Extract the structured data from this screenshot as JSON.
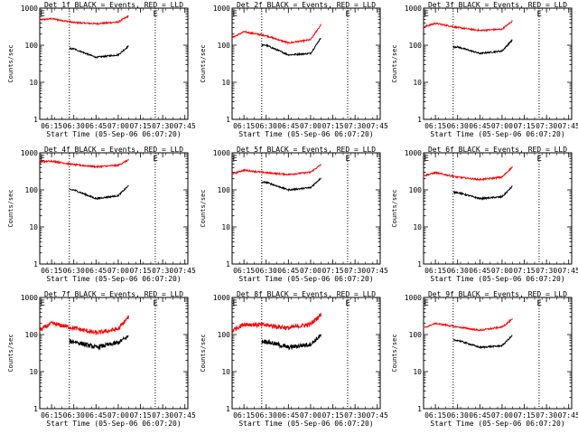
{
  "figure": {
    "x_time_labels": [
      "06:15",
      "06:30",
      "06:45",
      "07:00",
      "07:15",
      "07:30",
      "07:45"
    ],
    "y_tick_labels": [
      "1",
      "10",
      "100",
      "1000"
    ],
    "ylabel": "Counts/sec",
    "xlabel": "Start Time (05-Sep-06 06:07:20)",
    "marker_label": "E",
    "colors": {
      "events": "#000000",
      "lld": "#ff0000",
      "axes": "#000000"
    }
  },
  "chart_data": [
    {
      "type": "line",
      "title": "Det 1f BLACK = Events, RED = LLD",
      "xlabel": "Start Time (05-Sep-06 06:07:20)",
      "ylabel": "Counts/sec",
      "x_range": [
        "06:07",
        "07:47"
      ],
      "y_range": [
        1,
        1000
      ],
      "y_scale": "log",
      "grid": false,
      "vlines": [
        "06:27",
        "07:25"
      ],
      "marker": "E",
      "x": [
        "06:07",
        "06:15",
        "06:30",
        "06:45",
        "07:00",
        "07:07"
      ],
      "series": [
        {
          "name": "LLD",
          "color": "#ff0000",
          "values": [
            480,
            520,
            410,
            380,
            420,
            620
          ]
        },
        {
          "name": "Events",
          "color": "#000000",
          "x_start": "06:27",
          "values": [
            null,
            null,
            80,
            47,
            55,
            95
          ]
        }
      ]
    },
    {
      "type": "line",
      "title": "Det 2f BLACK = Events, RED = LLD",
      "xlabel": "Start Time (05-Sep-06 06:07:20)",
      "ylabel": "Counts/sec",
      "x_range": [
        "06:07",
        "07:47"
      ],
      "y_range": [
        1,
        1000
      ],
      "y_scale": "log",
      "grid": false,
      "vlines": [
        "06:27",
        "07:25"
      ],
      "marker": "E",
      "x": [
        "06:07",
        "06:15",
        "06:30",
        "06:45",
        "07:00",
        "07:07"
      ],
      "series": [
        {
          "name": "LLD",
          "color": "#ff0000",
          "values": [
            160,
            230,
            180,
            115,
            140,
            360
          ]
        },
        {
          "name": "Events",
          "color": "#000000",
          "x_start": "06:27",
          "values": [
            null,
            null,
            100,
            55,
            60,
            160
          ]
        }
      ]
    },
    {
      "type": "line",
      "title": "Det 3f BLACK = Events, RED = LLD",
      "xlabel": "Start Time (05-Sep-06 06:07:20)",
      "ylabel": "Counts/sec",
      "x_range": [
        "06:07",
        "07:47"
      ],
      "y_range": [
        1,
        1000
      ],
      "y_scale": "log",
      "grid": false,
      "vlines": [
        "06:27",
        "07:25"
      ],
      "marker": "E",
      "x": [
        "06:07",
        "06:15",
        "06:30",
        "06:45",
        "07:00",
        "07:07"
      ],
      "series": [
        {
          "name": "LLD",
          "color": "#ff0000",
          "values": [
            310,
            390,
            300,
            250,
            270,
            450
          ]
        },
        {
          "name": "Events",
          "color": "#000000",
          "x_start": "06:27",
          "values": [
            null,
            null,
            90,
            60,
            70,
            140
          ]
        }
      ]
    },
    {
      "type": "line",
      "title": "Det 4f BLACK = Events, RED = LLD",
      "xlabel": "Start Time (05-Sep-06 06:07:20)",
      "ylabel": "Counts/sec",
      "x_range": [
        "06:07",
        "07:47"
      ],
      "y_range": [
        1,
        1000
      ],
      "y_scale": "log",
      "grid": false,
      "vlines": [
        "06:27",
        "07:25"
      ],
      "marker": "E",
      "x": [
        "06:07",
        "06:15",
        "06:30",
        "06:45",
        "07:00",
        "07:07"
      ],
      "series": [
        {
          "name": "LLD",
          "color": "#ff0000",
          "values": [
            560,
            600,
            480,
            420,
            460,
            650
          ]
        },
        {
          "name": "Events",
          "color": "#000000",
          "x_start": "06:27",
          "values": [
            null,
            null,
            100,
            58,
            70,
            130
          ]
        }
      ]
    },
    {
      "type": "line",
      "title": "Det 5f BLACK = Events, RED = LLD",
      "xlabel": "Start Time (05-Sep-06 06:07:20)",
      "ylabel": "Counts/sec",
      "x_range": [
        "06:07",
        "07:47"
      ],
      "y_range": [
        1,
        1000
      ],
      "y_scale": "log",
      "grid": false,
      "vlines": [
        "06:27",
        "07:25"
      ],
      "marker": "E",
      "x": [
        "06:07",
        "06:15",
        "06:30",
        "06:45",
        "07:00",
        "07:07"
      ],
      "series": [
        {
          "name": "LLD",
          "color": "#ff0000",
          "values": [
            270,
            340,
            290,
            260,
            300,
            480
          ]
        },
        {
          "name": "Events",
          "color": "#000000",
          "x_start": "06:27",
          "values": [
            null,
            null,
            160,
            100,
            115,
            210
          ]
        }
      ]
    },
    {
      "type": "line",
      "title": "Det 6f BLACK = Events, RED = LLD",
      "xlabel": "Start Time (05-Sep-06 06:07:20)",
      "ylabel": "Counts/sec",
      "x_range": [
        "06:07",
        "07:47"
      ],
      "y_range": [
        1,
        1000
      ],
      "y_scale": "log",
      "grid": false,
      "vlines": [
        "06:27",
        "07:25"
      ],
      "marker": "E",
      "x": [
        "06:07",
        "06:15",
        "06:30",
        "06:45",
        "07:00",
        "07:07"
      ],
      "series": [
        {
          "name": "LLD",
          "color": "#ff0000",
          "values": [
            240,
            290,
            220,
            190,
            220,
            420
          ]
        },
        {
          "name": "Events",
          "color": "#000000",
          "x_start": "06:27",
          "values": [
            null,
            null,
            85,
            58,
            65,
            125
          ]
        }
      ]
    },
    {
      "type": "line",
      "title": "Det 7f BLACK = Events, RED = LLD",
      "xlabel": "Start Time (05-Sep-06 06:07:20)",
      "ylabel": "Counts/sec",
      "x_range": [
        "06:07",
        "07:47"
      ],
      "y_range": [
        1,
        1000
      ],
      "y_scale": "log",
      "grid": false,
      "vlines": [
        "06:27",
        "07:25"
      ],
      "marker": "E",
      "x": [
        "06:07",
        "06:15",
        "06:30",
        "06:45",
        "07:00",
        "07:07"
      ],
      "series": [
        {
          "name": "LLD",
          "color": "#ff0000",
          "values": [
            130,
            200,
            150,
            110,
            140,
            300
          ]
        },
        {
          "name": "Events",
          "color": "#000000",
          "x_start": "06:27",
          "values": [
            null,
            null,
            65,
            45,
            60,
            90
          ]
        }
      ]
    },
    {
      "type": "line",
      "title": "Det 8f BLACK = Events, RED = LLD",
      "xlabel": "Start Time (05-Sep-06 06:07:20)",
      "ylabel": "Counts/sec",
      "x_range": [
        "06:07",
        "07:47"
      ],
      "y_range": [
        1,
        1000
      ],
      "y_scale": "log",
      "grid": false,
      "vlines": [
        "06:27",
        "07:25"
      ],
      "marker": "E",
      "x": [
        "06:07",
        "06:15",
        "06:30",
        "06:45",
        "07:00",
        "07:07"
      ],
      "series": [
        {
          "name": "LLD",
          "color": "#ff0000",
          "values": [
            130,
            190,
            180,
            150,
            190,
            350
          ]
        },
        {
          "name": "Events",
          "color": "#000000",
          "x_start": "06:27",
          "values": [
            null,
            null,
            65,
            45,
            55,
            95
          ]
        }
      ]
    },
    {
      "type": "line",
      "title": "Det 9f BLACK = Events, RED = LLD",
      "xlabel": "Start Time (05-Sep-06 06:07:20)",
      "ylabel": "Counts/sec",
      "x_range": [
        "06:07",
        "07:47"
      ],
      "y_range": [
        1,
        1000
      ],
      "y_scale": "log",
      "grid": false,
      "vlines": [
        "06:27",
        "07:25"
      ],
      "marker": "E",
      "x": [
        "06:07",
        "06:15",
        "06:30",
        "06:45",
        "07:00",
        "07:07"
      ],
      "series": [
        {
          "name": "LLD",
          "color": "#ff0000",
          "values": [
            150,
            200,
            160,
            130,
            160,
            260
          ]
        },
        {
          "name": "Events",
          "color": "#000000",
          "x_start": "06:27",
          "values": [
            null,
            null,
            70,
            45,
            50,
            95
          ]
        }
      ]
    }
  ]
}
